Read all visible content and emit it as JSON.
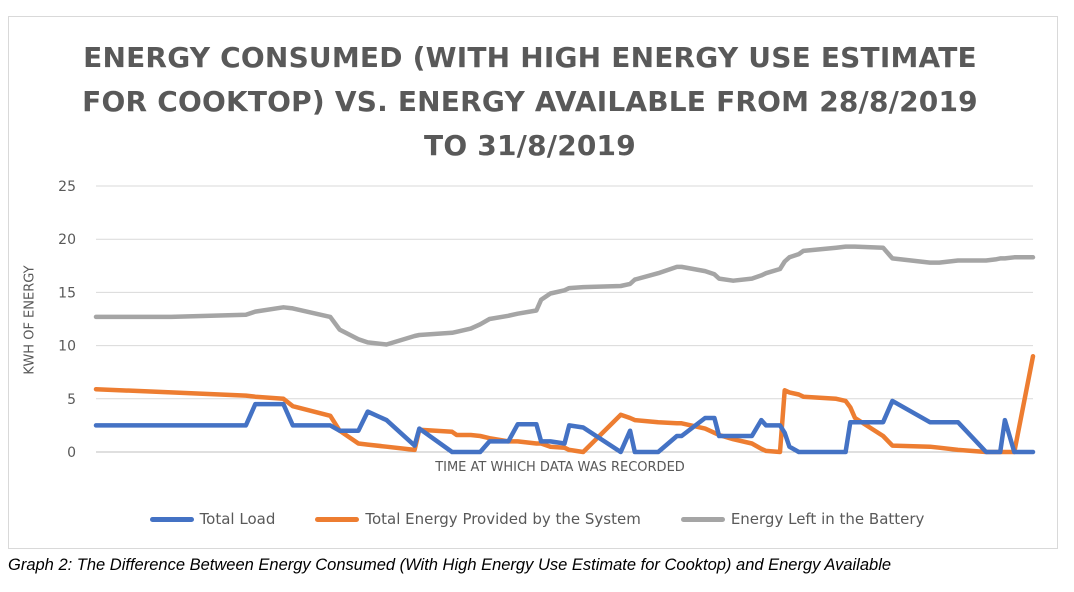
{
  "figure": {
    "caption": "Graph 2: The Difference Between Energy Consumed (With High Energy Use Estimate for Cooktop) and Energy Available"
  },
  "chart_data": {
    "type": "line",
    "title_lines": [
      "ENERGY CONSUMED (WITH HIGH ENERGY USE ESTIMATE",
      "FOR COOKTOP) VS. ENERGY AVAILABLE FROM 28/8/2019",
      "TO 31/8/2019"
    ],
    "xlabel": "TIME AT WHICH DATA WAS RECORDED",
    "ylabel": "KWH OF ENERGY",
    "ylim": [
      0,
      25
    ],
    "yticks": [
      "0",
      "5",
      "10",
      "15",
      "20",
      "25"
    ],
    "grid": true,
    "legend_position": "bottom",
    "x": [
      0,
      8,
      16,
      17,
      20,
      21,
      25,
      26,
      28,
      29,
      31,
      34,
      34.5,
      38,
      38.5,
      40,
      41,
      42,
      44,
      45,
      47,
      47.5,
      48.5,
      50,
      50.5,
      52,
      56,
      57,
      57.5,
      60,
      62,
      62.5,
      65,
      66,
      66.5,
      68,
      70,
      71,
      71.5,
      73,
      73.5,
      74,
      75,
      75.5,
      79,
      80,
      80.5,
      81,
      84,
      85,
      89,
      90,
      92,
      95,
      96,
      96.5,
      97,
      98,
      100
    ],
    "series": [
      {
        "name": "Total Load",
        "color": "#4472c4",
        "values": [
          2.5,
          2.5,
          2.5,
          4.5,
          4.5,
          2.5,
          2.5,
          2.0,
          2.0,
          3.8,
          3.0,
          0.6,
          2.2,
          0.0,
          0.0,
          0.0,
          0.0,
          1.0,
          1.0,
          2.6,
          2.6,
          1.0,
          1.0,
          0.8,
          2.5,
          2.3,
          0.0,
          2.0,
          0.0,
          0.0,
          1.5,
          1.5,
          3.2,
          3.2,
          1.5,
          1.5,
          1.5,
          3.0,
          2.5,
          2.5,
          1.8,
          0.5,
          0.0,
          0.0,
          0.0,
          0.0,
          2.8,
          2.8,
          2.8,
          4.8,
          2.8,
          2.8,
          2.8,
          0.0,
          0.0,
          0.0,
          3.0,
          0.0,
          0.0
        ]
      },
      {
        "name": "Total Energy Provided by the System",
        "color": "#ed7d31",
        "values": [
          5.9,
          5.6,
          5.3,
          5.2,
          5.0,
          4.3,
          3.4,
          2.0,
          0.8,
          0.7,
          0.5,
          0.2,
          2.1,
          1.9,
          1.6,
          1.6,
          1.5,
          1.3,
          1.0,
          1.0,
          0.8,
          0.8,
          0.5,
          0.4,
          0.2,
          0.0,
          3.5,
          3.2,
          3.0,
          2.8,
          2.7,
          2.7,
          2.2,
          1.8,
          1.6,
          1.2,
          0.8,
          0.3,
          0.1,
          0.0,
          5.8,
          5.6,
          5.4,
          5.2,
          5.0,
          4.8,
          4.2,
          3.2,
          1.5,
          0.6,
          0.5,
          0.4,
          0.2,
          0.0,
          0.0,
          0.0,
          0.0,
          0.0,
          9.0
        ]
      },
      {
        "name": "Energy Left in the Battery",
        "color": "#a5a5a5",
        "values": [
          12.7,
          12.7,
          12.9,
          13.2,
          13.6,
          13.5,
          12.7,
          11.5,
          10.6,
          10.3,
          10.1,
          10.9,
          11.0,
          11.2,
          11.3,
          11.6,
          12.0,
          12.5,
          12.8,
          13.0,
          13.3,
          14.3,
          14.9,
          15.2,
          15.4,
          15.5,
          15.6,
          15.8,
          16.2,
          16.8,
          17.4,
          17.4,
          17.0,
          16.7,
          16.3,
          16.1,
          16.3,
          16.6,
          16.8,
          17.2,
          17.9,
          18.3,
          18.6,
          18.9,
          19.2,
          19.3,
          19.3,
          19.3,
          19.2,
          18.2,
          17.8,
          17.8,
          18.0,
          18.0,
          18.1,
          18.2,
          18.2,
          18.3,
          18.3
        ]
      }
    ]
  }
}
